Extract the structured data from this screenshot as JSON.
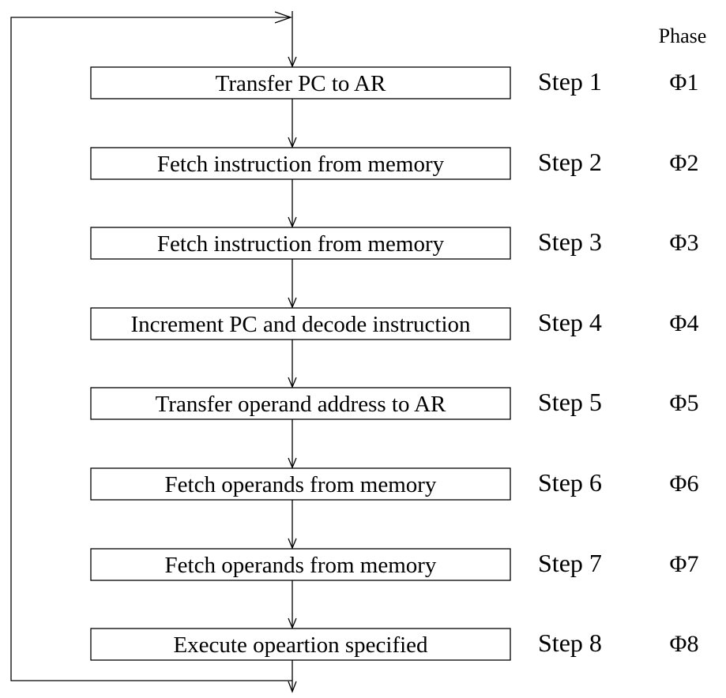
{
  "diagram": {
    "phase_header": "Phase",
    "steps": [
      {
        "action": "Transfer PC to AR",
        "step": "Step 1",
        "phase": "Φ1"
      },
      {
        "action": "Fetch instruction from memory",
        "step": "Step 2",
        "phase": "Φ2"
      },
      {
        "action": "Fetch instruction from memory",
        "step": "Step 3",
        "phase": "Φ3"
      },
      {
        "action": "Increment PC and decode instruction",
        "step": "Step 4",
        "phase": "Φ4"
      },
      {
        "action": "Transfer operand address to AR",
        "step": "Step 5",
        "phase": "Φ5"
      },
      {
        "action": "Fetch operands from memory",
        "step": "Step 6",
        "phase": "Φ6"
      },
      {
        "action": "Fetch operands from memory",
        "step": "Step 7",
        "phase": "Φ7"
      },
      {
        "action": "Execute opeartion specified",
        "step": "Step 8",
        "phase": "Φ8"
      }
    ]
  }
}
